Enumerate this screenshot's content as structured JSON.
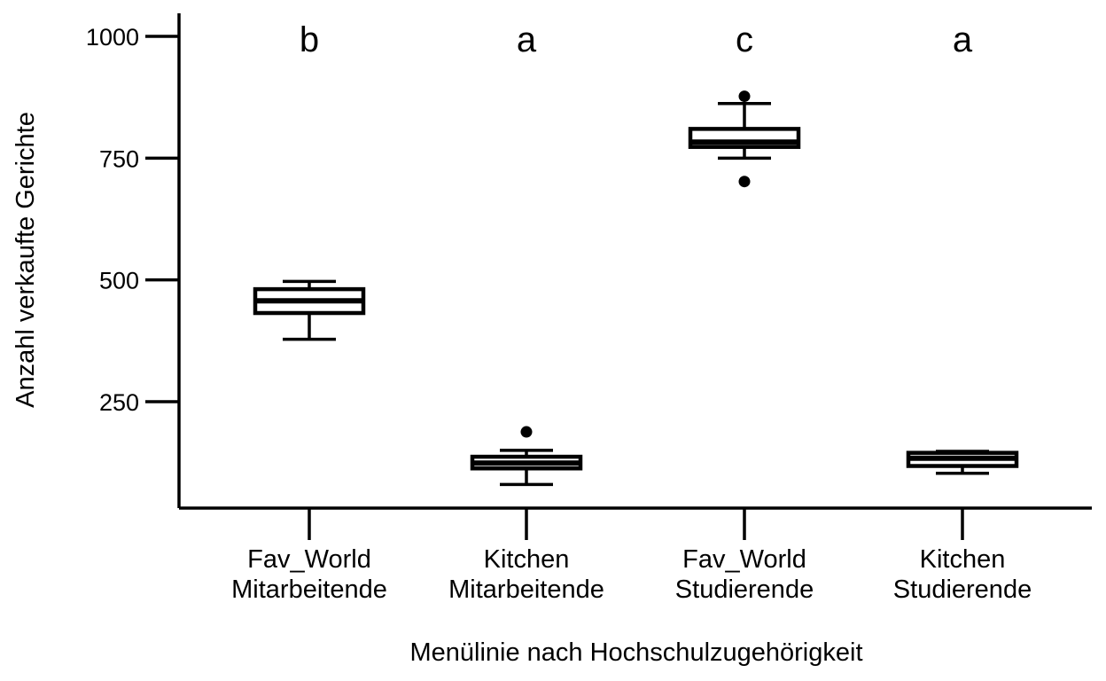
{
  "chart_data": {
    "type": "box",
    "xlabel": "Menülinie nach Hochschulzugehörigkeit",
    "ylabel": "Anzahl verkaufte Gerichte",
    "ylim": [
      70,
      1040
    ],
    "yticks": [
      250,
      500,
      750,
      1000
    ],
    "grid": false,
    "legend": "none",
    "categories": [
      {
        "line1": "Fav_World",
        "line2": "Mitarbeitende",
        "letter": "b",
        "min": 378,
        "q1": 432,
        "median": 457,
        "q3": 481,
        "max": 497,
        "outliers": []
      },
      {
        "line1": "Kitchen",
        "line2": "Mitarbeitende",
        "letter": "a",
        "min": 80,
        "q1": 113,
        "median": 124,
        "q3": 137,
        "max": 150,
        "outliers": [
          188
        ]
      },
      {
        "line1": "Fav_World",
        "line2": "Studierende",
        "letter": "c",
        "min": 750,
        "q1": 773,
        "median": 783,
        "q3": 810,
        "max": 862,
        "outliers": [
          877,
          702
        ]
      },
      {
        "line1": "Kitchen",
        "line2": "Studierende",
        "letter": "a",
        "min": 103,
        "q1": 118,
        "median": 134,
        "q3": 145,
        "max": 148,
        "outliers": []
      }
    ]
  }
}
